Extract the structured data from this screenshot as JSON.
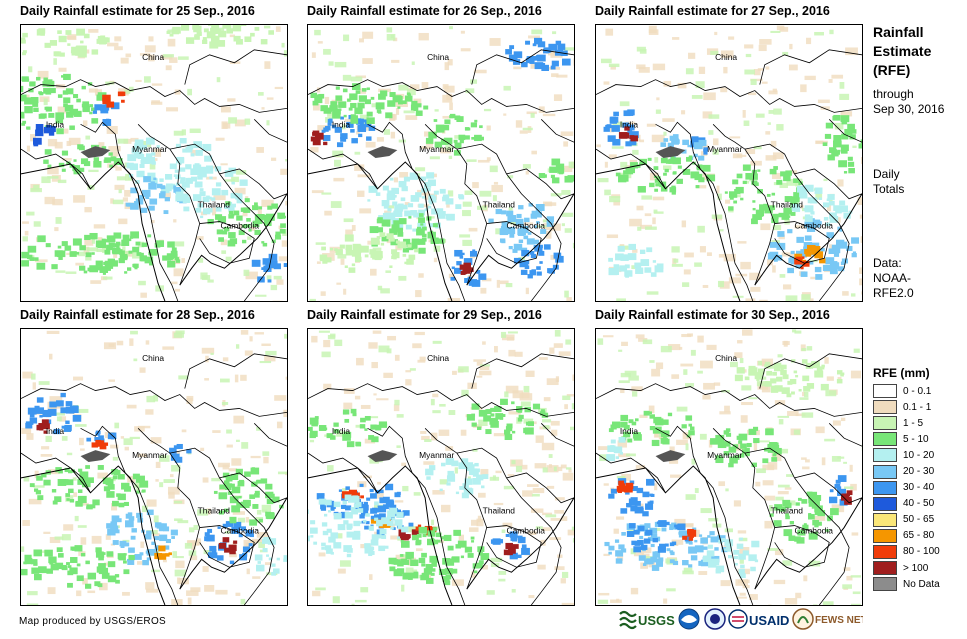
{
  "panels": [
    {
      "title": "Daily Rainfall estimate for 25 Sep., 2016"
    },
    {
      "title": "Daily Rainfall estimate for 26 Sep., 2016"
    },
    {
      "title": "Daily Rainfall estimate for 27 Sep., 2016"
    },
    {
      "title": "Daily Rainfall estimate for 28 Sep., 2016"
    },
    {
      "title": "Daily Rainfall estimate for 29 Sep., 2016"
    },
    {
      "title": "Daily Rainfall estimate for 30 Sep., 2016"
    }
  ],
  "map_labels": {
    "china": "China",
    "india": "India",
    "myanmar": "Myanmar",
    "thailand": "Thailand",
    "cambodia": "Cambodia"
  },
  "side": {
    "title_line1": "Rainfall",
    "title_line2": "Estimate",
    "title_line3": "(RFE)",
    "through": "through",
    "date": "Sep 30, 2016",
    "daily_line1": "Daily",
    "daily_line2": "Totals",
    "data_line1": "Data:",
    "data_line2": "NOAA-",
    "data_line3": "RFE2.0"
  },
  "legend": {
    "title": "RFE (mm)",
    "items": [
      {
        "label": "0 - 0.1",
        "color": "#ffffff"
      },
      {
        "label": "0.1 - 1",
        "color": "#f0dcbe"
      },
      {
        "label": "1 - 5",
        "color": "#c8f5b4"
      },
      {
        "label": "5 - 10",
        "color": "#78e678"
      },
      {
        "label": "10 - 20",
        "color": "#b4f0f0"
      },
      {
        "label": "20 - 30",
        "color": "#78c8f5"
      },
      {
        "label": "30 - 40",
        "color": "#3c96f0"
      },
      {
        "label": "40 - 50",
        "color": "#1e5adc"
      },
      {
        "label": "50 - 65",
        "color": "#fae678"
      },
      {
        "label": "65 - 80",
        "color": "#f59600"
      },
      {
        "label": "80 - 100",
        "color": "#f03c0a"
      },
      {
        "label": "> 100",
        "color": "#a01e1e"
      },
      {
        "label": "No Data",
        "color": "#8c8c8c"
      }
    ]
  },
  "credit": "Map produced by USGS/EROS",
  "logos": {
    "usgs": "USGS",
    "usaid": "USAID",
    "fewsnet": "FEWS NET"
  },
  "colors": {
    "border": "#000000",
    "river_delta": "#555555"
  }
}
